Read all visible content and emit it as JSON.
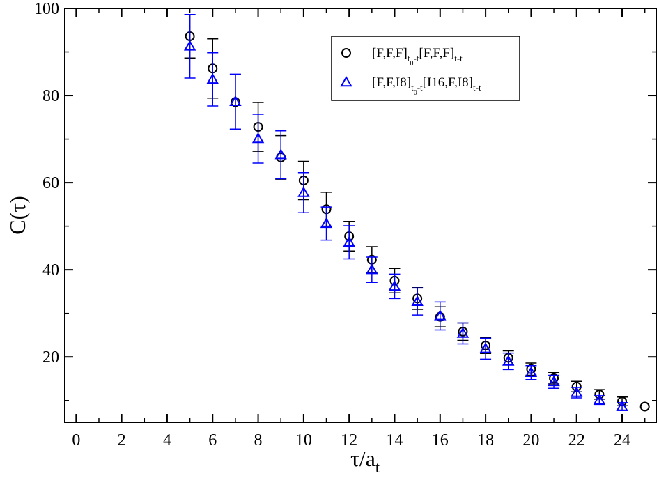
{
  "chart_data": {
    "type": "scatter",
    "xlabel": {
      "main": "τ/a",
      "sub": "t"
    },
    "ylabel": "C(τ)",
    "xlim": [
      -0.5,
      25.5
    ],
    "ylim": [
      5,
      100
    ],
    "xticks": [
      0,
      2,
      4,
      6,
      8,
      10,
      12,
      14,
      16,
      18,
      20,
      22,
      24
    ],
    "yticks": [
      20,
      40,
      60,
      80,
      100
    ],
    "grid": false,
    "legend_position": "top-right",
    "series": [
      {
        "name_parts": [
          [
            "[F,F,F]",
            ""
          ],
          [
            "t",
            "sub"
          ],
          [
            "0",
            "subsub"
          ],
          [
            "-t",
            "sub"
          ],
          [
            "[F,F,F]",
            ""
          ],
          [
            "t-t",
            "sub"
          ]
        ],
        "marker": "circle",
        "color": "#000000",
        "x": [
          5,
          6,
          7,
          8,
          9,
          10,
          11,
          12,
          13,
          14,
          15,
          16,
          17,
          18,
          19,
          20,
          21,
          22,
          23,
          24,
          25
        ],
        "y": [
          93.6,
          86.2,
          78.5,
          72.8,
          65.8,
          60.5,
          53.9,
          47.7,
          42.3,
          37.5,
          33.4,
          29.2,
          25.8,
          22.6,
          19.8,
          17.2,
          15.1,
          13.2,
          11.4,
          9.8,
          8.6
        ],
        "err": [
          5.0,
          6.8,
          6.3,
          5.6,
          5.0,
          4.4,
          3.9,
          3.4,
          3.0,
          2.8,
          2.5,
          2.3,
          2.0,
          1.8,
          1.6,
          1.4,
          1.3,
          1.2,
          1.1,
          1.0,
          0.0
        ]
      },
      {
        "name_parts": [
          [
            "[F,F,I8]",
            ""
          ],
          [
            "t",
            "sub"
          ],
          [
            "0",
            "subsub"
          ],
          [
            "-t",
            "sub"
          ],
          [
            "[I16,F,I8]",
            ""
          ],
          [
            "t-t",
            "sub"
          ]
        ],
        "marker": "triangle",
        "color": "#0000ff",
        "x": [
          5,
          6,
          7,
          8,
          9,
          10,
          11,
          12,
          13,
          14,
          15,
          16,
          17,
          18,
          19,
          20,
          21,
          22,
          23,
          24
        ],
        "y": [
          91.3,
          83.7,
          78.6,
          70.1,
          66.4,
          57.7,
          50.6,
          46.3,
          40.0,
          36.2,
          32.7,
          29.4,
          25.4,
          21.9,
          19.0,
          16.4,
          14.3,
          11.8,
          10.1,
          8.6
        ],
        "err": [
          7.3,
          6.1,
          6.3,
          5.6,
          5.5,
          4.6,
          3.8,
          3.8,
          2.9,
          2.8,
          3.1,
          3.2,
          2.4,
          2.4,
          1.9,
          1.6,
          1.5,
          1.2,
          1.0,
          0.9
        ]
      }
    ]
  }
}
